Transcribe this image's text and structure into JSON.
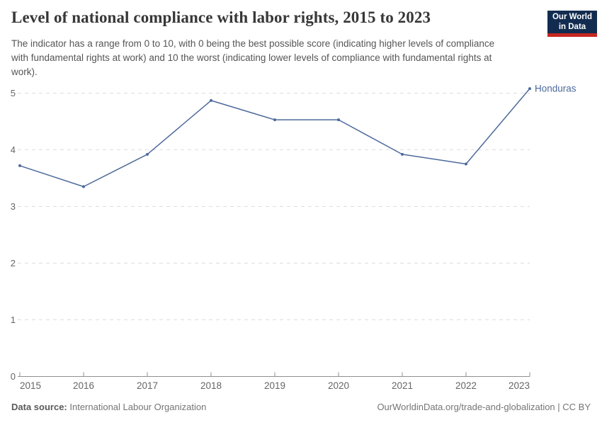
{
  "header": {
    "title": "Level of national compliance with labor rights, 2015 to 2023",
    "subtitle": "The indicator has a range from 0 to 10, with 0 being the best possible score (indicating higher levels of compliance with fundamental rights at work) and 10 the worst (indicating lower levels of compliance with fundamental rights at work)."
  },
  "logo": {
    "line1": "Our World",
    "line2": "in Data",
    "bg_color": "#122c50",
    "stripe_color": "#c62620"
  },
  "chart_data": {
    "type": "line",
    "title": "Level of national compliance with labor rights, 2015 to 2023",
    "x": [
      2015,
      2016,
      2017,
      2018,
      2019,
      2020,
      2021,
      2022,
      2023
    ],
    "series": [
      {
        "name": "Honduras",
        "values": [
          3.72,
          3.35,
          3.92,
          4.87,
          4.53,
          4.53,
          3.92,
          3.75,
          5.08
        ]
      }
    ],
    "xlabel": "",
    "ylabel": "",
    "ylim": [
      0,
      5
    ],
    "yticks": [
      0,
      1,
      2,
      3,
      4,
      5
    ],
    "grid": "horizontal-dashed",
    "legend": "end-of-line-label",
    "line_color": "#4d6a9b"
  },
  "colors": {
    "grid": "#dddddd",
    "axis": "#8f8f8f",
    "tick_text": "#666666"
  },
  "footer": {
    "source_label": "Data source:",
    "source_value": " International Labour Organization",
    "link": "OurWorldinData.org/trade-and-globalization | CC BY"
  }
}
